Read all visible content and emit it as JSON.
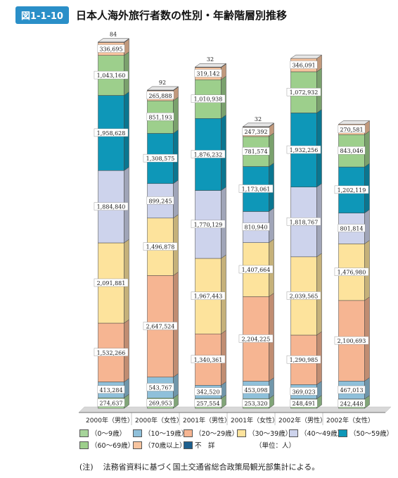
{
  "figure": {
    "label": "図1-1-10",
    "title": "日本人海外旅行者数の性別・年齢階層別推移"
  },
  "chart_data": {
    "type": "bar",
    "stacked": true,
    "categories": [
      "2000年（男性）",
      "2000年（女性）",
      "2001年（男性）",
      "2001年（女性）",
      "2002年（男性）",
      "2002年（女性）"
    ],
    "series": [
      {
        "name": "（0～9歳）",
        "color": "#a6d49a",
        "values": [
          274637,
          269953,
          257554,
          253320,
          248491,
          242448
        ]
      },
      {
        "name": "（10～19歳）",
        "color": "#8fc0da",
        "values": [
          413284,
          543767,
          342520,
          453098,
          369023,
          467013
        ]
      },
      {
        "name": "（20～29歳）",
        "color": "#f6b592",
        "values": [
          1532266,
          2647524,
          1340361,
          2204225,
          1290985,
          2100693
        ]
      },
      {
        "name": "（30～39歳）",
        "color": "#fde39c",
        "values": [
          2091881,
          1496878,
          1967443,
          1407664,
          2039565,
          1476980
        ]
      },
      {
        "name": "（40～49歳）",
        "color": "#cdd3ec",
        "values": [
          1884840,
          899245,
          1770129,
          810940,
          1818767,
          801814
        ]
      },
      {
        "name": "（50～59歳）",
        "color": "#0e97b8",
        "values": [
          1958628,
          1308575,
          1876232,
          1173061,
          1932256,
          1202119
        ]
      },
      {
        "name": "（60～69歳）",
        "color": "#9dcf8c",
        "values": [
          1043160,
          851193,
          1010938,
          781574,
          1072932,
          843046
        ]
      },
      {
        "name": "（70歳以上）",
        "color": "#f7c49f",
        "values": [
          336695,
          265888,
          319142,
          247392,
          346091,
          270581
        ]
      },
      {
        "name": "不　詳",
        "color": "#1d5f8e",
        "values": [
          84,
          92,
          32,
          32,
          null,
          null
        ]
      }
    ],
    "top_labels": [
      "84",
      "92",
      "32",
      "32",
      "",
      ""
    ],
    "data_labels": [
      [
        "274,637",
        "413,284",
        "1,532,266",
        "2,091,881",
        "1,884,840",
        "1,958,628",
        "1,043,160",
        "336,695"
      ],
      [
        "269,953",
        "543,767",
        "2,647,524",
        "1,496,878",
        "899,245",
        "1,308,575",
        "851,193",
        "265,888"
      ],
      [
        "257,554",
        "342,520",
        "1,340,361",
        "1,967,443",
        "1,770,129",
        "1,876,232",
        "1,010,938",
        "319,142"
      ],
      [
        "253,320",
        "453,098",
        "2,204,225",
        "1,407,664",
        "810,940",
        "1,173,061",
        "781,574",
        "247,392"
      ],
      [
        "248,491",
        "369,023",
        "1,290,985",
        "2,039,565",
        "1,818,767",
        "1,932,256",
        "1,072,932",
        "346,091"
      ],
      [
        "242,448",
        "467,013",
        "2,100,693",
        "1,476,980",
        "801,814",
        "1,202,119",
        "843,046",
        "270,581"
      ]
    ],
    "unit_note": "（単位：人）",
    "legend_position": "bottom"
  },
  "note": {
    "prefix": "(注)",
    "text": "法務省資料に基づく国土交通省総合政策局観光部集計による。"
  }
}
